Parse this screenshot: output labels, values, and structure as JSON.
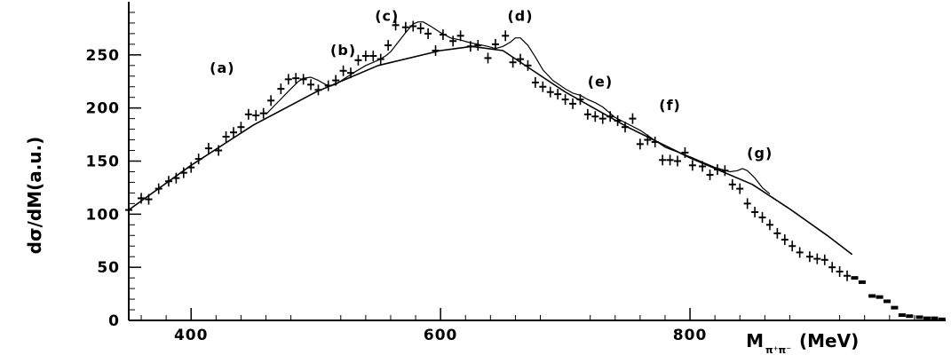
{
  "chart_data": {
    "type": "scatter",
    "xlabel_main": "M",
    "xlabel_sub": "π⁺π⁻",
    "xlabel_unit": "(MeV)",
    "ylabel": "dσ/dM(a.u.)",
    "xlim": [
      350,
      1005
    ],
    "ylim": [
      0,
      300
    ],
    "x_ticks": [
      400,
      600,
      800
    ],
    "x_tick_labels": [
      "400",
      "600",
      "800"
    ],
    "y_ticks": [
      0,
      50,
      100,
      150,
      200,
      250
    ],
    "y_tick_labels": [
      "0",
      "50",
      "100",
      "150",
      "200",
      "250"
    ],
    "grid": false,
    "legend": "none",
    "annotations": [
      {
        "text": "(a)",
        "x": 425,
        "y": 233
      },
      {
        "text": "(b)",
        "x": 522,
        "y": 250
      },
      {
        "text": "(c)",
        "x": 557,
        "y": 282
      },
      {
        "text": "(d)",
        "x": 664,
        "y": 282
      },
      {
        "text": "(e)",
        "x": 728,
        "y": 220
      },
      {
        "text": "(f)",
        "x": 784,
        "y": 198
      },
      {
        "text": "(g)",
        "x": 856,
        "y": 153
      }
    ],
    "series": [
      {
        "role": "data points",
        "x": [
          350,
          360,
          366,
          374,
          382,
          388,
          394,
          400,
          406,
          414,
          422,
          428,
          434,
          440,
          446,
          452,
          458,
          464,
          472,
          478,
          484,
          490,
          496,
          502,
          510,
          516,
          522,
          528,
          534,
          540,
          546,
          552,
          558,
          564,
          572,
          578,
          584,
          590,
          596,
          602,
          610,
          616,
          624,
          630,
          638,
          644,
          652,
          658,
          664,
          670,
          676,
          682,
          688,
          694,
          700,
          706,
          712,
          718,
          724,
          730,
          736,
          742,
          748,
          754,
          760,
          766,
          772,
          778,
          784,
          790,
          796,
          802,
          810,
          816,
          822,
          828,
          834,
          840,
          846,
          852,
          858,
          864,
          870,
          876,
          882,
          888,
          896,
          902,
          908,
          914,
          920,
          926,
          932,
          938,
          946,
          952,
          958,
          964,
          970,
          976,
          984,
          990,
          996,
          1002
        ],
        "y": [
          104,
          115,
          114,
          124,
          131,
          134,
          139,
          144,
          152,
          162,
          160,
          173,
          177,
          182,
          194,
          193,
          195,
          207,
          218,
          227,
          228,
          227,
          222,
          217,
          221,
          226,
          235,
          233,
          245,
          249,
          249,
          246,
          259,
          278,
          276,
          277,
          275,
          270,
          254,
          269,
          263,
          268,
          258,
          259,
          247,
          260,
          268,
          243,
          246,
          240,
          224,
          220,
          215,
          213,
          208,
          204,
          208,
          194,
          192,
          190,
          192,
          188,
          182,
          190,
          166,
          170,
          168,
          151,
          151,
          150,
          158,
          146,
          145,
          137,
          142,
          141,
          128,
          124,
          110,
          102,
          97,
          90,
          82,
          76,
          70,
          64,
          60,
          58,
          57,
          50,
          46,
          42,
          40,
          36,
          23,
          22,
          18,
          12,
          5,
          4,
          3,
          2,
          2,
          1
        ]
      },
      {
        "role": "background fit",
        "x": [
          350,
          400,
          450,
          500,
          550,
          600,
          625,
          650,
          700,
          750,
          800,
          850,
          880,
          910,
          930
        ],
        "y": [
          104,
          146,
          184,
          215,
          240,
          254,
          258,
          254,
          215,
          182,
          153,
          128,
          105,
          80,
          62
        ]
      },
      {
        "role": "resonance fit",
        "x": [
          460,
          470,
          480,
          486,
          490,
          496,
          502,
          508,
          512,
          516,
          522,
          530,
          540,
          550,
          556,
          560,
          566,
          572,
          578,
          582,
          586,
          592,
          600,
          608,
          616,
          622,
          630,
          638,
          644,
          650,
          656,
          660,
          664,
          670,
          676,
          682,
          690,
          700,
          706,
          712,
          718,
          724,
          730,
          740,
          760,
          770,
          780,
          800,
          810,
          820,
          826,
          832,
          838,
          842,
          846,
          852,
          858,
          864
        ],
        "y": [
          194,
          206,
          218,
          225,
          228,
          229,
          226,
          222,
          221,
          222,
          227,
          233,
          240,
          245,
          249,
          253,
          262,
          271,
          279,
          281,
          281,
          277,
          271,
          266,
          264,
          262,
          260,
          258,
          256,
          258,
          262,
          266,
          266,
          259,
          248,
          236,
          226,
          218,
          214,
          212,
          208,
          205,
          201,
          191,
          179,
          171,
          163,
          154,
          149,
          144,
          142,
          140,
          141,
          143,
          141,
          134,
          125,
          119
        ]
      }
    ]
  }
}
